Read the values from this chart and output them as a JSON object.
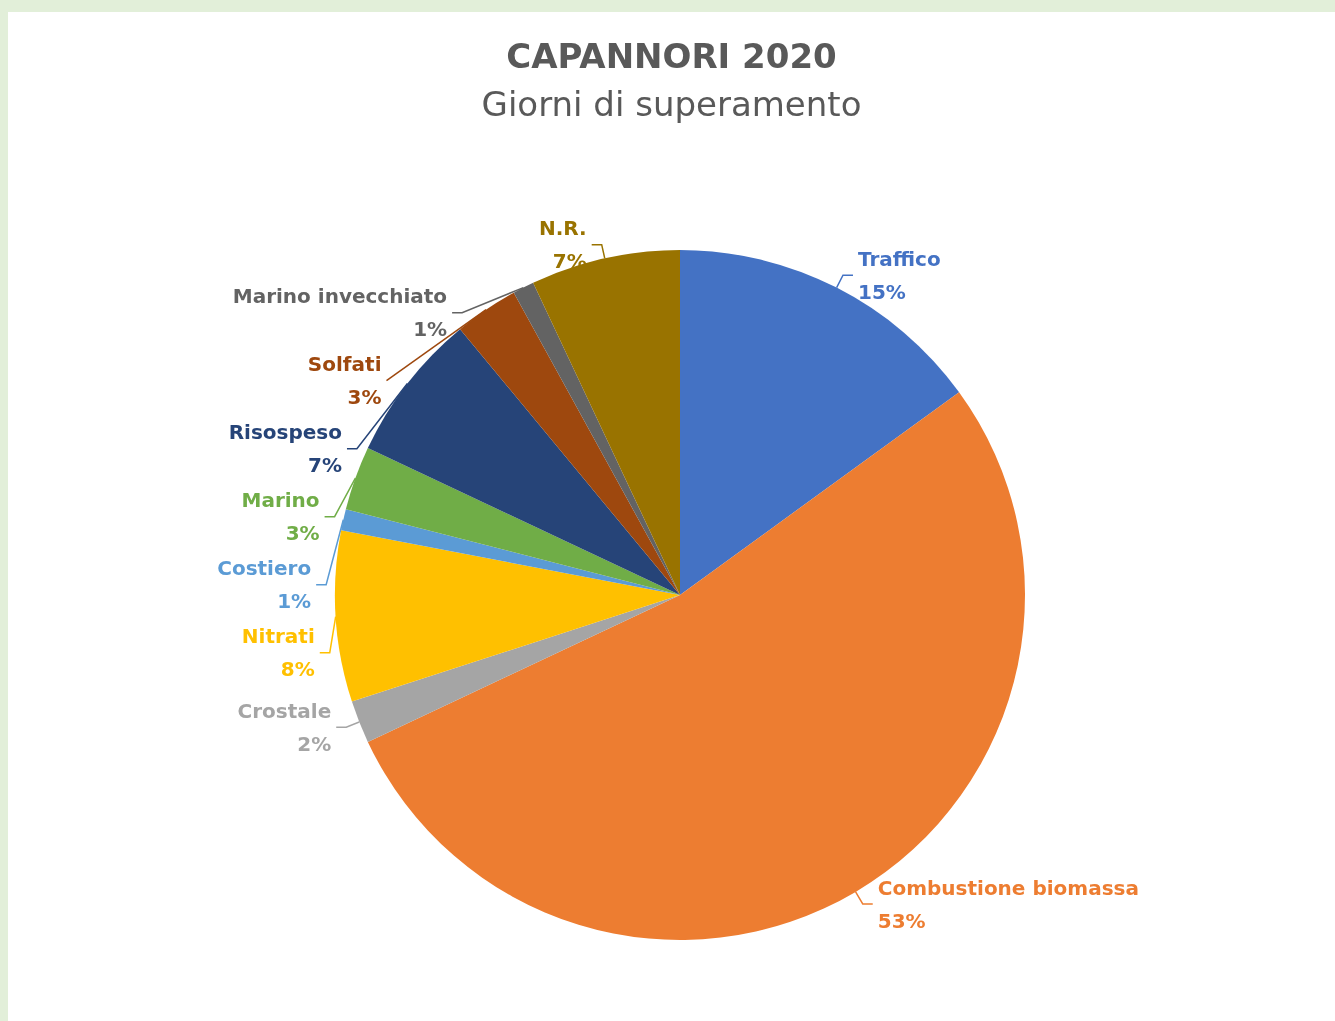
{
  "chart_data": {
    "type": "pie",
    "title": "CAPANNORI 2020",
    "subtitle": "Giorni di superamento",
    "categories": [
      "Traffico",
      "Combustione biomassa",
      "Crostale",
      "Nitrati",
      "Costiero",
      "Marino",
      "Risospeso",
      "Solfati",
      "Marino invecchiato",
      "N.R."
    ],
    "values": [
      15,
      53,
      2,
      8,
      1,
      3,
      7,
      3,
      1,
      7
    ],
    "value_labels": [
      "15%",
      "53%",
      "2%",
      "8%",
      "1%",
      "3%",
      "7%",
      "3%",
      "1%",
      "7%"
    ],
    "colors": [
      "#4472c4",
      "#ed7d31",
      "#a5a5a5",
      "#ffc000",
      "#5b9bd5",
      "#70ad47",
      "#264478",
      "#9e480e",
      "#636363",
      "#997300"
    ],
    "legend": false
  }
}
